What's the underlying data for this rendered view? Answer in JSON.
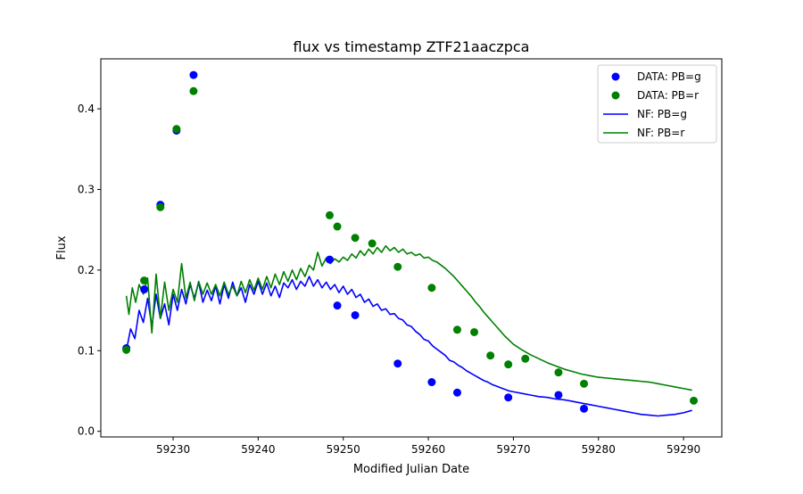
{
  "chart_data": {
    "type": "scatter",
    "title": "flux vs timestamp ZTF21aaczpca",
    "xlabel": "Modified Julian Date",
    "ylabel": "Flux",
    "xlim": [
      59221.5,
      59294.5
    ],
    "ylim": [
      -0.007,
      0.462
    ],
    "xticks": [
      59230,
      59240,
      59250,
      59260,
      59270,
      59280,
      59290
    ],
    "yticks": [
      0.0,
      0.1,
      0.2,
      0.3,
      0.4
    ],
    "ytick_labels": [
      "0.0",
      "0.1",
      "0.2",
      "0.3",
      "0.4"
    ],
    "grid": false,
    "legend_position": "top-right",
    "scatter_series": [
      {
        "name": "DATA: PB=g",
        "color": "#0000ff",
        "points": [
          [
            59224.5,
            0.103
          ],
          [
            59226.6,
            0.176
          ],
          [
            59228.5,
            0.281
          ],
          [
            59230.4,
            0.373
          ],
          [
            59232.4,
            0.442
          ],
          [
            59248.4,
            0.213
          ],
          [
            59249.3,
            0.156
          ],
          [
            59251.4,
            0.144
          ],
          [
            59256.4,
            0.084
          ],
          [
            59260.4,
            0.061
          ],
          [
            59263.4,
            0.048
          ],
          [
            59269.4,
            0.042
          ],
          [
            59275.3,
            0.045
          ],
          [
            59278.3,
            0.028
          ]
        ]
      },
      {
        "name": "DATA: PB=r",
        "color": "#008000",
        "points": [
          [
            59224.5,
            0.101
          ],
          [
            59226.6,
            0.187
          ],
          [
            59228.5,
            0.278
          ],
          [
            59230.4,
            0.375
          ],
          [
            59232.4,
            0.422
          ],
          [
            59248.4,
            0.268
          ],
          [
            59249.3,
            0.254
          ],
          [
            59251.4,
            0.24
          ],
          [
            59253.4,
            0.233
          ],
          [
            59256.4,
            0.204
          ],
          [
            59260.4,
            0.178
          ],
          [
            59263.4,
            0.126
          ],
          [
            59265.4,
            0.123
          ],
          [
            59267.3,
            0.094
          ],
          [
            59269.4,
            0.083
          ],
          [
            59271.4,
            0.09
          ],
          [
            59275.3,
            0.073
          ],
          [
            59278.3,
            0.059
          ],
          [
            59291.2,
            0.038
          ]
        ]
      }
    ],
    "line_series": [
      {
        "name": "NF: PB=g",
        "color": "#0000ff",
        "points": [
          [
            59224.5,
            0.1
          ],
          [
            59225.0,
            0.127
          ],
          [
            59225.5,
            0.115
          ],
          [
            59226.0,
            0.15
          ],
          [
            59226.5,
            0.135
          ],
          [
            59227.0,
            0.165
          ],
          [
            59227.5,
            0.13
          ],
          [
            59228.0,
            0.17
          ],
          [
            59228.5,
            0.14
          ],
          [
            59229.0,
            0.158
          ],
          [
            59229.5,
            0.132
          ],
          [
            59230.0,
            0.17
          ],
          [
            59230.5,
            0.15
          ],
          [
            59231.0,
            0.176
          ],
          [
            59231.5,
            0.158
          ],
          [
            59232.0,
            0.182
          ],
          [
            59232.5,
            0.165
          ],
          [
            59233.0,
            0.185
          ],
          [
            59233.5,
            0.16
          ],
          [
            59234.0,
            0.175
          ],
          [
            59234.5,
            0.162
          ],
          [
            59235.0,
            0.18
          ],
          [
            59235.5,
            0.158
          ],
          [
            59236.0,
            0.182
          ],
          [
            59236.5,
            0.165
          ],
          [
            59237.0,
            0.185
          ],
          [
            59237.5,
            0.168
          ],
          [
            59238.0,
            0.178
          ],
          [
            59238.5,
            0.16
          ],
          [
            59239.0,
            0.182
          ],
          [
            59239.5,
            0.17
          ],
          [
            59240.0,
            0.186
          ],
          [
            59240.5,
            0.17
          ],
          [
            59241.0,
            0.184
          ],
          [
            59241.5,
            0.168
          ],
          [
            59242.0,
            0.18
          ],
          [
            59242.5,
            0.166
          ],
          [
            59243.0,
            0.184
          ],
          [
            59243.5,
            0.178
          ],
          [
            59244.0,
            0.188
          ],
          [
            59244.5,
            0.176
          ],
          [
            59245.0,
            0.186
          ],
          [
            59245.5,
            0.18
          ],
          [
            59246.0,
            0.192
          ],
          [
            59246.5,
            0.18
          ],
          [
            59247.0,
            0.188
          ],
          [
            59247.5,
            0.178
          ],
          [
            59248.0,
            0.185
          ],
          [
            59248.5,
            0.176
          ],
          [
            59249.0,
            0.182
          ],
          [
            59249.5,
            0.172
          ],
          [
            59250.0,
            0.18
          ],
          [
            59250.5,
            0.17
          ],
          [
            59251.0,
            0.176
          ],
          [
            59251.5,
            0.166
          ],
          [
            59252.0,
            0.17
          ],
          [
            59252.5,
            0.16
          ],
          [
            59253.0,
            0.164
          ],
          [
            59253.5,
            0.155
          ],
          [
            59254.0,
            0.158
          ],
          [
            59254.5,
            0.15
          ],
          [
            59255.0,
            0.152
          ],
          [
            59255.5,
            0.145
          ],
          [
            59256.0,
            0.146
          ],
          [
            59256.5,
            0.14
          ],
          [
            59257.0,
            0.138
          ],
          [
            59257.5,
            0.132
          ],
          [
            59258.0,
            0.13
          ],
          [
            59258.5,
            0.124
          ],
          [
            59259.0,
            0.12
          ],
          [
            59259.5,
            0.114
          ],
          [
            59260.0,
            0.112
          ],
          [
            59260.5,
            0.106
          ],
          [
            59261.0,
            0.102
          ],
          [
            59261.5,
            0.098
          ],
          [
            59262.0,
            0.094
          ],
          [
            59262.5,
            0.088
          ],
          [
            59263.0,
            0.086
          ],
          [
            59263.5,
            0.082
          ],
          [
            59264.0,
            0.079
          ],
          [
            59264.5,
            0.075
          ],
          [
            59265.0,
            0.072
          ],
          [
            59265.5,
            0.069
          ],
          [
            59266.0,
            0.066
          ],
          [
            59266.5,
            0.063
          ],
          [
            59267.0,
            0.061
          ],
          [
            59267.5,
            0.058
          ],
          [
            59268.0,
            0.056
          ],
          [
            59268.5,
            0.054
          ],
          [
            59269.0,
            0.052
          ],
          [
            59269.5,
            0.05
          ],
          [
            59270.0,
            0.049
          ],
          [
            59271.0,
            0.047
          ],
          [
            59272.0,
            0.045
          ],
          [
            59273.0,
            0.043
          ],
          [
            59274.0,
            0.042
          ],
          [
            59275.0,
            0.04
          ],
          [
            59276.0,
            0.039
          ],
          [
            59277.0,
            0.037
          ],
          [
            59278.0,
            0.035
          ],
          [
            59279.0,
            0.033
          ],
          [
            59280.0,
            0.031
          ],
          [
            59281.0,
            0.029
          ],
          [
            59282.0,
            0.027
          ],
          [
            59283.0,
            0.025
          ],
          [
            59284.0,
            0.023
          ],
          [
            59285.0,
            0.021
          ],
          [
            59286.0,
            0.02
          ],
          [
            59287.0,
            0.019
          ],
          [
            59288.0,
            0.02
          ],
          [
            59289.0,
            0.021
          ],
          [
            59290.0,
            0.023
          ],
          [
            59291.0,
            0.026
          ]
        ]
      },
      {
        "name": "NF: PB=r",
        "color": "#008000",
        "points": [
          [
            59224.5,
            0.168
          ],
          [
            59224.8,
            0.145
          ],
          [
            59225.2,
            0.178
          ],
          [
            59225.6,
            0.16
          ],
          [
            59226.0,
            0.182
          ],
          [
            59226.5,
            0.17
          ],
          [
            59227.0,
            0.19
          ],
          [
            59227.5,
            0.122
          ],
          [
            59228.0,
            0.195
          ],
          [
            59228.5,
            0.14
          ],
          [
            59229.0,
            0.185
          ],
          [
            59229.5,
            0.15
          ],
          [
            59230.0,
            0.176
          ],
          [
            59230.5,
            0.16
          ],
          [
            59231.0,
            0.208
          ],
          [
            59231.5,
            0.165
          ],
          [
            59232.0,
            0.185
          ],
          [
            59232.5,
            0.162
          ],
          [
            59233.0,
            0.186
          ],
          [
            59233.5,
            0.17
          ],
          [
            59234.0,
            0.184
          ],
          [
            59234.5,
            0.17
          ],
          [
            59235.0,
            0.182
          ],
          [
            59235.5,
            0.168
          ],
          [
            59236.0,
            0.185
          ],
          [
            59236.5,
            0.17
          ],
          [
            59237.0,
            0.18
          ],
          [
            59237.5,
            0.168
          ],
          [
            59238.0,
            0.186
          ],
          [
            59238.5,
            0.172
          ],
          [
            59239.0,
            0.188
          ],
          [
            59239.5,
            0.175
          ],
          [
            59240.0,
            0.19
          ],
          [
            59240.5,
            0.176
          ],
          [
            59241.0,
            0.192
          ],
          [
            59241.5,
            0.178
          ],
          [
            59242.0,
            0.195
          ],
          [
            59242.5,
            0.182
          ],
          [
            59243.0,
            0.198
          ],
          [
            59243.5,
            0.186
          ],
          [
            59244.0,
            0.2
          ],
          [
            59244.5,
            0.188
          ],
          [
            59245.0,
            0.202
          ],
          [
            59245.5,
            0.192
          ],
          [
            59246.0,
            0.206
          ],
          [
            59246.5,
            0.2
          ],
          [
            59247.0,
            0.222
          ],
          [
            59247.5,
            0.205
          ],
          [
            59248.0,
            0.215
          ],
          [
            59248.5,
            0.208
          ],
          [
            59249.0,
            0.214
          ],
          [
            59249.5,
            0.21
          ],
          [
            59250.0,
            0.216
          ],
          [
            59250.5,
            0.212
          ],
          [
            59251.0,
            0.22
          ],
          [
            59251.5,
            0.215
          ],
          [
            59252.0,
            0.224
          ],
          [
            59252.5,
            0.218
          ],
          [
            59253.0,
            0.226
          ],
          [
            59253.5,
            0.22
          ],
          [
            59254.0,
            0.228
          ],
          [
            59254.5,
            0.222
          ],
          [
            59255.0,
            0.23
          ],
          [
            59255.5,
            0.224
          ],
          [
            59256.0,
            0.228
          ],
          [
            59256.5,
            0.222
          ],
          [
            59257.0,
            0.226
          ],
          [
            59257.5,
            0.22
          ],
          [
            59258.0,
            0.222
          ],
          [
            59258.5,
            0.218
          ],
          [
            59259.0,
            0.22
          ],
          [
            59259.5,
            0.215
          ],
          [
            59260.0,
            0.216
          ],
          [
            59260.5,
            0.212
          ],
          [
            59261.0,
            0.21
          ],
          [
            59261.5,
            0.206
          ],
          [
            59262.0,
            0.202
          ],
          [
            59262.5,
            0.197
          ],
          [
            59263.0,
            0.192
          ],
          [
            59263.5,
            0.186
          ],
          [
            59264.0,
            0.18
          ],
          [
            59264.5,
            0.174
          ],
          [
            59265.0,
            0.168
          ],
          [
            59265.5,
            0.161
          ],
          [
            59266.0,
            0.155
          ],
          [
            59266.5,
            0.148
          ],
          [
            59267.0,
            0.142
          ],
          [
            59267.5,
            0.136
          ],
          [
            59268.0,
            0.13
          ],
          [
            59268.5,
            0.124
          ],
          [
            59269.0,
            0.118
          ],
          [
            59269.5,
            0.113
          ],
          [
            59270.0,
            0.108
          ],
          [
            59271.0,
            0.101
          ],
          [
            59272.0,
            0.095
          ],
          [
            59273.0,
            0.09
          ],
          [
            59274.0,
            0.085
          ],
          [
            59275.0,
            0.081
          ],
          [
            59276.0,
            0.077
          ],
          [
            59277.0,
            0.074
          ],
          [
            59278.0,
            0.071
          ],
          [
            59279.0,
            0.069
          ],
          [
            59280.0,
            0.067
          ],
          [
            59281.0,
            0.066
          ],
          [
            59282.0,
            0.065
          ],
          [
            59283.0,
            0.064
          ],
          [
            59284.0,
            0.063
          ],
          [
            59285.0,
            0.062
          ],
          [
            59286.0,
            0.061
          ],
          [
            59287.0,
            0.059
          ],
          [
            59288.0,
            0.057
          ],
          [
            59289.0,
            0.055
          ],
          [
            59290.0,
            0.053
          ],
          [
            59291.0,
            0.051
          ]
        ]
      }
    ]
  }
}
